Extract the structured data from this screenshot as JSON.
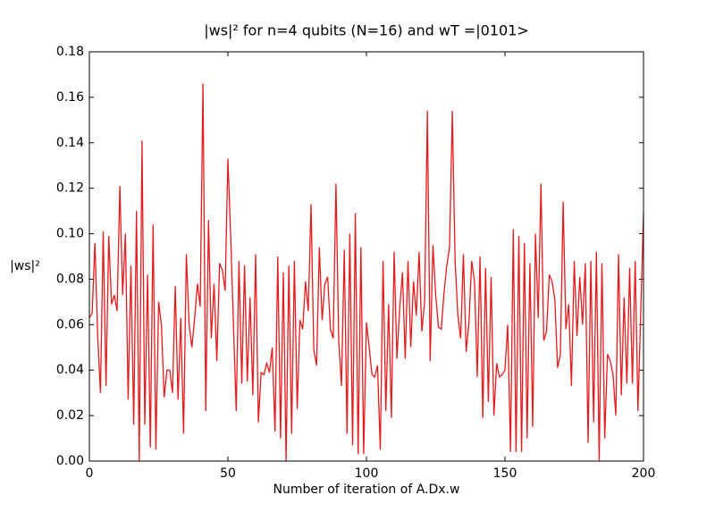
{
  "chart_data": {
    "type": "line",
    "title": "|ws|²  for n=4 qubits (N=16) and wT =|0101>",
    "xlabel": "Number of iteration of A.Dx.w",
    "ylabel": "|ws|²",
    "xlim": [
      0,
      200
    ],
    "ylim": [
      0,
      0.18
    ],
    "xticks": [
      0,
      50,
      100,
      150,
      200
    ],
    "yticks": [
      {
        "value": 0,
        "label": "0.00"
      },
      {
        "value": 0.02,
        "label": "0.02"
      },
      {
        "value": 0.04,
        "label": "0.04"
      },
      {
        "value": 0.06,
        "label": "0.06"
      },
      {
        "value": 0.08,
        "label": "0.08"
      },
      {
        "value": 0.1,
        "label": "0.10"
      },
      {
        "value": 0.12,
        "label": "0.12"
      },
      {
        "value": 0.14,
        "label": "0.14"
      },
      {
        "value": 0.16,
        "label": "0.16"
      },
      {
        "value": 0.18,
        "label": "0.18"
      }
    ],
    "grid": false,
    "x": [
      0,
      1,
      2,
      3,
      4,
      5,
      6,
      7,
      8,
      9,
      10,
      11,
      12,
      13,
      14,
      15,
      16,
      17,
      18,
      19,
      20,
      21,
      22,
      23,
      24,
      25,
      26,
      27,
      28,
      29,
      30,
      31,
      32,
      33,
      34,
      35,
      36,
      37,
      38,
      39,
      40,
      41,
      42,
      43,
      44,
      45,
      46,
      47,
      48,
      49,
      50,
      51,
      52,
      53,
      54,
      55,
      56,
      57,
      58,
      59,
      60,
      61,
      62,
      63,
      64,
      65,
      66,
      67,
      68,
      69,
      70,
      71,
      72,
      73,
      74,
      75,
      76,
      77,
      78,
      79,
      80,
      81,
      82,
      83,
      84,
      85,
      86,
      87,
      88,
      89,
      90,
      91,
      92,
      93,
      94,
      95,
      96,
      97,
      98,
      99,
      100,
      101,
      102,
      103,
      104,
      105,
      106,
      107,
      108,
      109,
      110,
      111,
      112,
      113,
      114,
      115,
      116,
      117,
      118,
      119,
      120,
      121,
      122,
      123,
      124,
      125,
      126,
      127,
      128,
      129,
      130,
      131,
      132,
      133,
      134,
      135,
      136,
      137,
      138,
      139,
      140,
      141,
      142,
      143,
      144,
      145,
      146,
      147,
      148,
      149,
      150,
      151,
      152,
      153,
      154,
      155,
      156,
      157,
      158,
      159,
      160,
      161,
      162,
      163,
      164,
      165,
      166,
      167,
      168,
      169,
      170,
      171,
      172,
      173,
      174,
      175,
      176,
      177,
      178,
      179,
      180,
      181,
      182,
      183,
      184,
      185,
      186,
      187,
      188,
      189,
      190,
      191,
      192,
      193,
      194,
      195,
      196,
      197,
      198,
      199,
      200
    ],
    "series": [
      {
        "name": "|ws|²",
        "color": "#e41a1c",
        "values": [
          0.063,
          0.065,
          0.096,
          0.055,
          0.03,
          0.101,
          0.033,
          0.099,
          0.069,
          0.073,
          0.066,
          0.121,
          0.073,
          0.1,
          0.027,
          0.086,
          0.016,
          0.11,
          0.0,
          0.141,
          0.016,
          0.082,
          0.006,
          0.104,
          0.005,
          0.07,
          0.06,
          0.028,
          0.04,
          0.04,
          0.03,
          0.077,
          0.027,
          0.063,
          0.012,
          0.091,
          0.06,
          0.05,
          0.063,
          0.078,
          0.068,
          0.166,
          0.022,
          0.106,
          0.054,
          0.078,
          0.044,
          0.087,
          0.084,
          0.075,
          0.133,
          0.099,
          0.06,
          0.022,
          0.088,
          0.034,
          0.086,
          0.035,
          0.072,
          0.029,
          0.091,
          0.017,
          0.039,
          0.038,
          0.043,
          0.039,
          0.05,
          0.013,
          0.09,
          0.01,
          0.083,
          0.0,
          0.086,
          0.012,
          0.088,
          0.023,
          0.062,
          0.058,
          0.079,
          0.066,
          0.113,
          0.049,
          0.042,
          0.094,
          0.062,
          0.078,
          0.081,
          0.058,
          0.054,
          0.122,
          0.053,
          0.033,
          0.093,
          0.012,
          0.1,
          0.007,
          0.109,
          0.003,
          0.094,
          0.003,
          0.061,
          0.05,
          0.038,
          0.037,
          0.042,
          0.005,
          0.088,
          0.022,
          0.069,
          0.019,
          0.092,
          0.045,
          0.067,
          0.083,
          0.045,
          0.088,
          0.05,
          0.079,
          0.064,
          0.092,
          0.057,
          0.07,
          0.154,
          0.044,
          0.095,
          0.073,
          0.059,
          0.058,
          0.074,
          0.086,
          0.094,
          0.154,
          0.088,
          0.064,
          0.054,
          0.091,
          0.048,
          0.061,
          0.088,
          0.079,
          0.037,
          0.09,
          0.019,
          0.085,
          0.026,
          0.081,
          0.02,
          0.043,
          0.037,
          0.038,
          0.04,
          0.06,
          0.004,
          0.102,
          0.004,
          0.099,
          0.004,
          0.096,
          0.01,
          0.087,
          0.015,
          0.1,
          0.063,
          0.122,
          0.053,
          0.057,
          0.082,
          0.079,
          0.071,
          0.041,
          0.047,
          0.114,
          0.058,
          0.069,
          0.033,
          0.088,
          0.055,
          0.081,
          0.06,
          0.087,
          0.008,
          0.088,
          0.017,
          0.092,
          0.0,
          0.087,
          0.01,
          0.047,
          0.044,
          0.038,
          0.02,
          0.091,
          0.029,
          0.072,
          0.034,
          0.085,
          0.034,
          0.088,
          0.022,
          0.065,
          0.109
        ]
      }
    ]
  }
}
